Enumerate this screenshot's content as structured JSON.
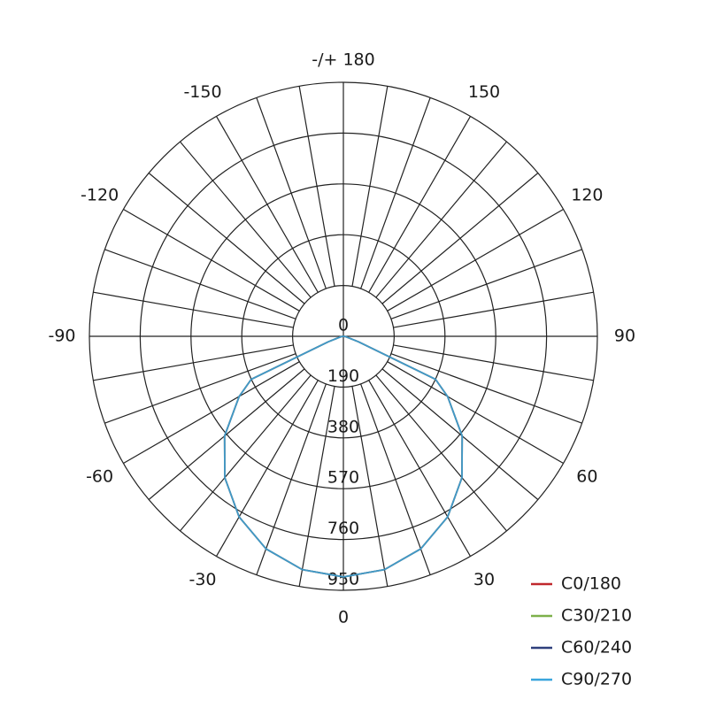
{
  "chart_data": {
    "type": "polar",
    "angle_labels": [
      {
        "angle": 180,
        "text": "-/+ 180"
      },
      {
        "angle": 150,
        "text": "150"
      },
      {
        "angle": -150,
        "text": "-150"
      },
      {
        "angle": 120,
        "text": "120"
      },
      {
        "angle": -120,
        "text": "-120"
      },
      {
        "angle": 90,
        "text": "90"
      },
      {
        "angle": -90,
        "text": "-90"
      },
      {
        "angle": 60,
        "text": "60"
      },
      {
        "angle": -60,
        "text": "-60"
      },
      {
        "angle": 30,
        "text": "30"
      },
      {
        "angle": -30,
        "text": "-30"
      },
      {
        "angle": 0,
        "text": "0"
      }
    ],
    "radial_ticks": [
      0,
      190,
      380,
      570,
      760,
      950
    ],
    "radial_range": [
      0,
      950
    ],
    "angle_grid_step": 10,
    "grid": true,
    "legend_position": "bottom-right",
    "angles": [
      0,
      10,
      20,
      30,
      40,
      50,
      60,
      65,
      70,
      80,
      90
    ],
    "series": [
      {
        "name": "C0/180",
        "color": "#c0282d",
        "values": [
          900,
          886,
          846,
          780,
          690,
          580,
          450,
          380,
          60,
          10,
          0
        ]
      },
      {
        "name": "C30/210",
        "color": "#7db04a",
        "values": [
          900,
          886,
          846,
          780,
          690,
          580,
          450,
          380,
          60,
          10,
          0
        ]
      },
      {
        "name": "C60/240",
        "color": "#2e3f7c",
        "values": [
          900,
          886,
          846,
          780,
          690,
          580,
          450,
          380,
          60,
          10,
          0
        ]
      },
      {
        "name": "C90/270",
        "color": "#3aa6dd",
        "values": [
          900,
          886,
          846,
          780,
          690,
          580,
          450,
          380,
          60,
          10,
          0
        ]
      }
    ]
  }
}
